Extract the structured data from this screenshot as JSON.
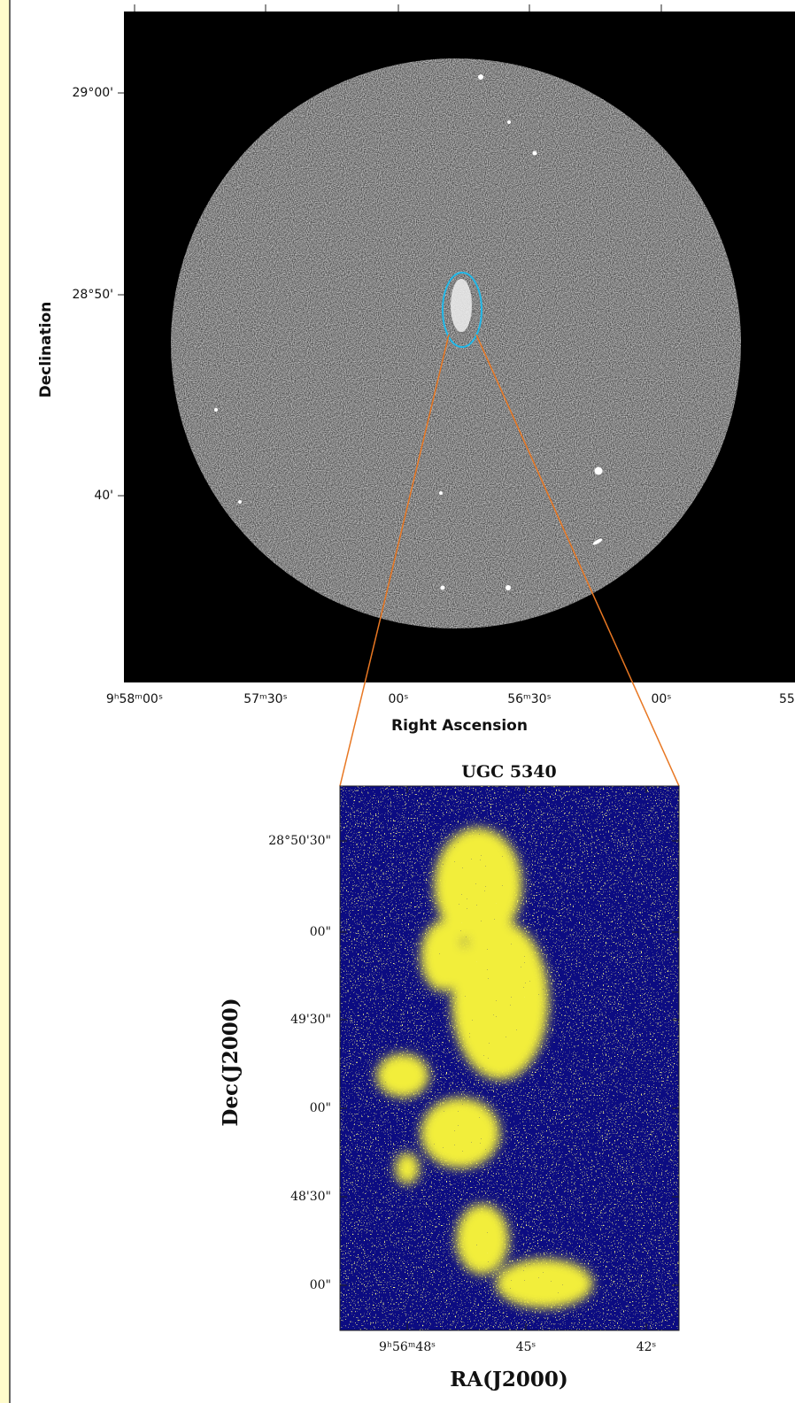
{
  "top_panel": {
    "x_label": "Right Ascension",
    "y_label": "Declination",
    "x_ticks": [
      "9ʰ58ᵐ00ˢ",
      "57ᵐ30ˢ",
      "00ˢ",
      "56ᵐ30ˢ",
      "00ˢ",
      "55"
    ],
    "y_ticks": [
      "29°00'",
      "28°50'",
      "40'"
    ]
  },
  "bottom_panel": {
    "title": "UGC 5340",
    "x_label": "RA(J2000)",
    "y_label": "Dec(J2000)",
    "x_ticks": [
      "9ʰ56ᵐ48ˢ",
      "45ˢ",
      "42ˢ"
    ],
    "y_ticks": [
      "28°50'30\"",
      "00\"",
      "49'30\"",
      "00\"",
      "48'30\"",
      "00\""
    ]
  }
}
